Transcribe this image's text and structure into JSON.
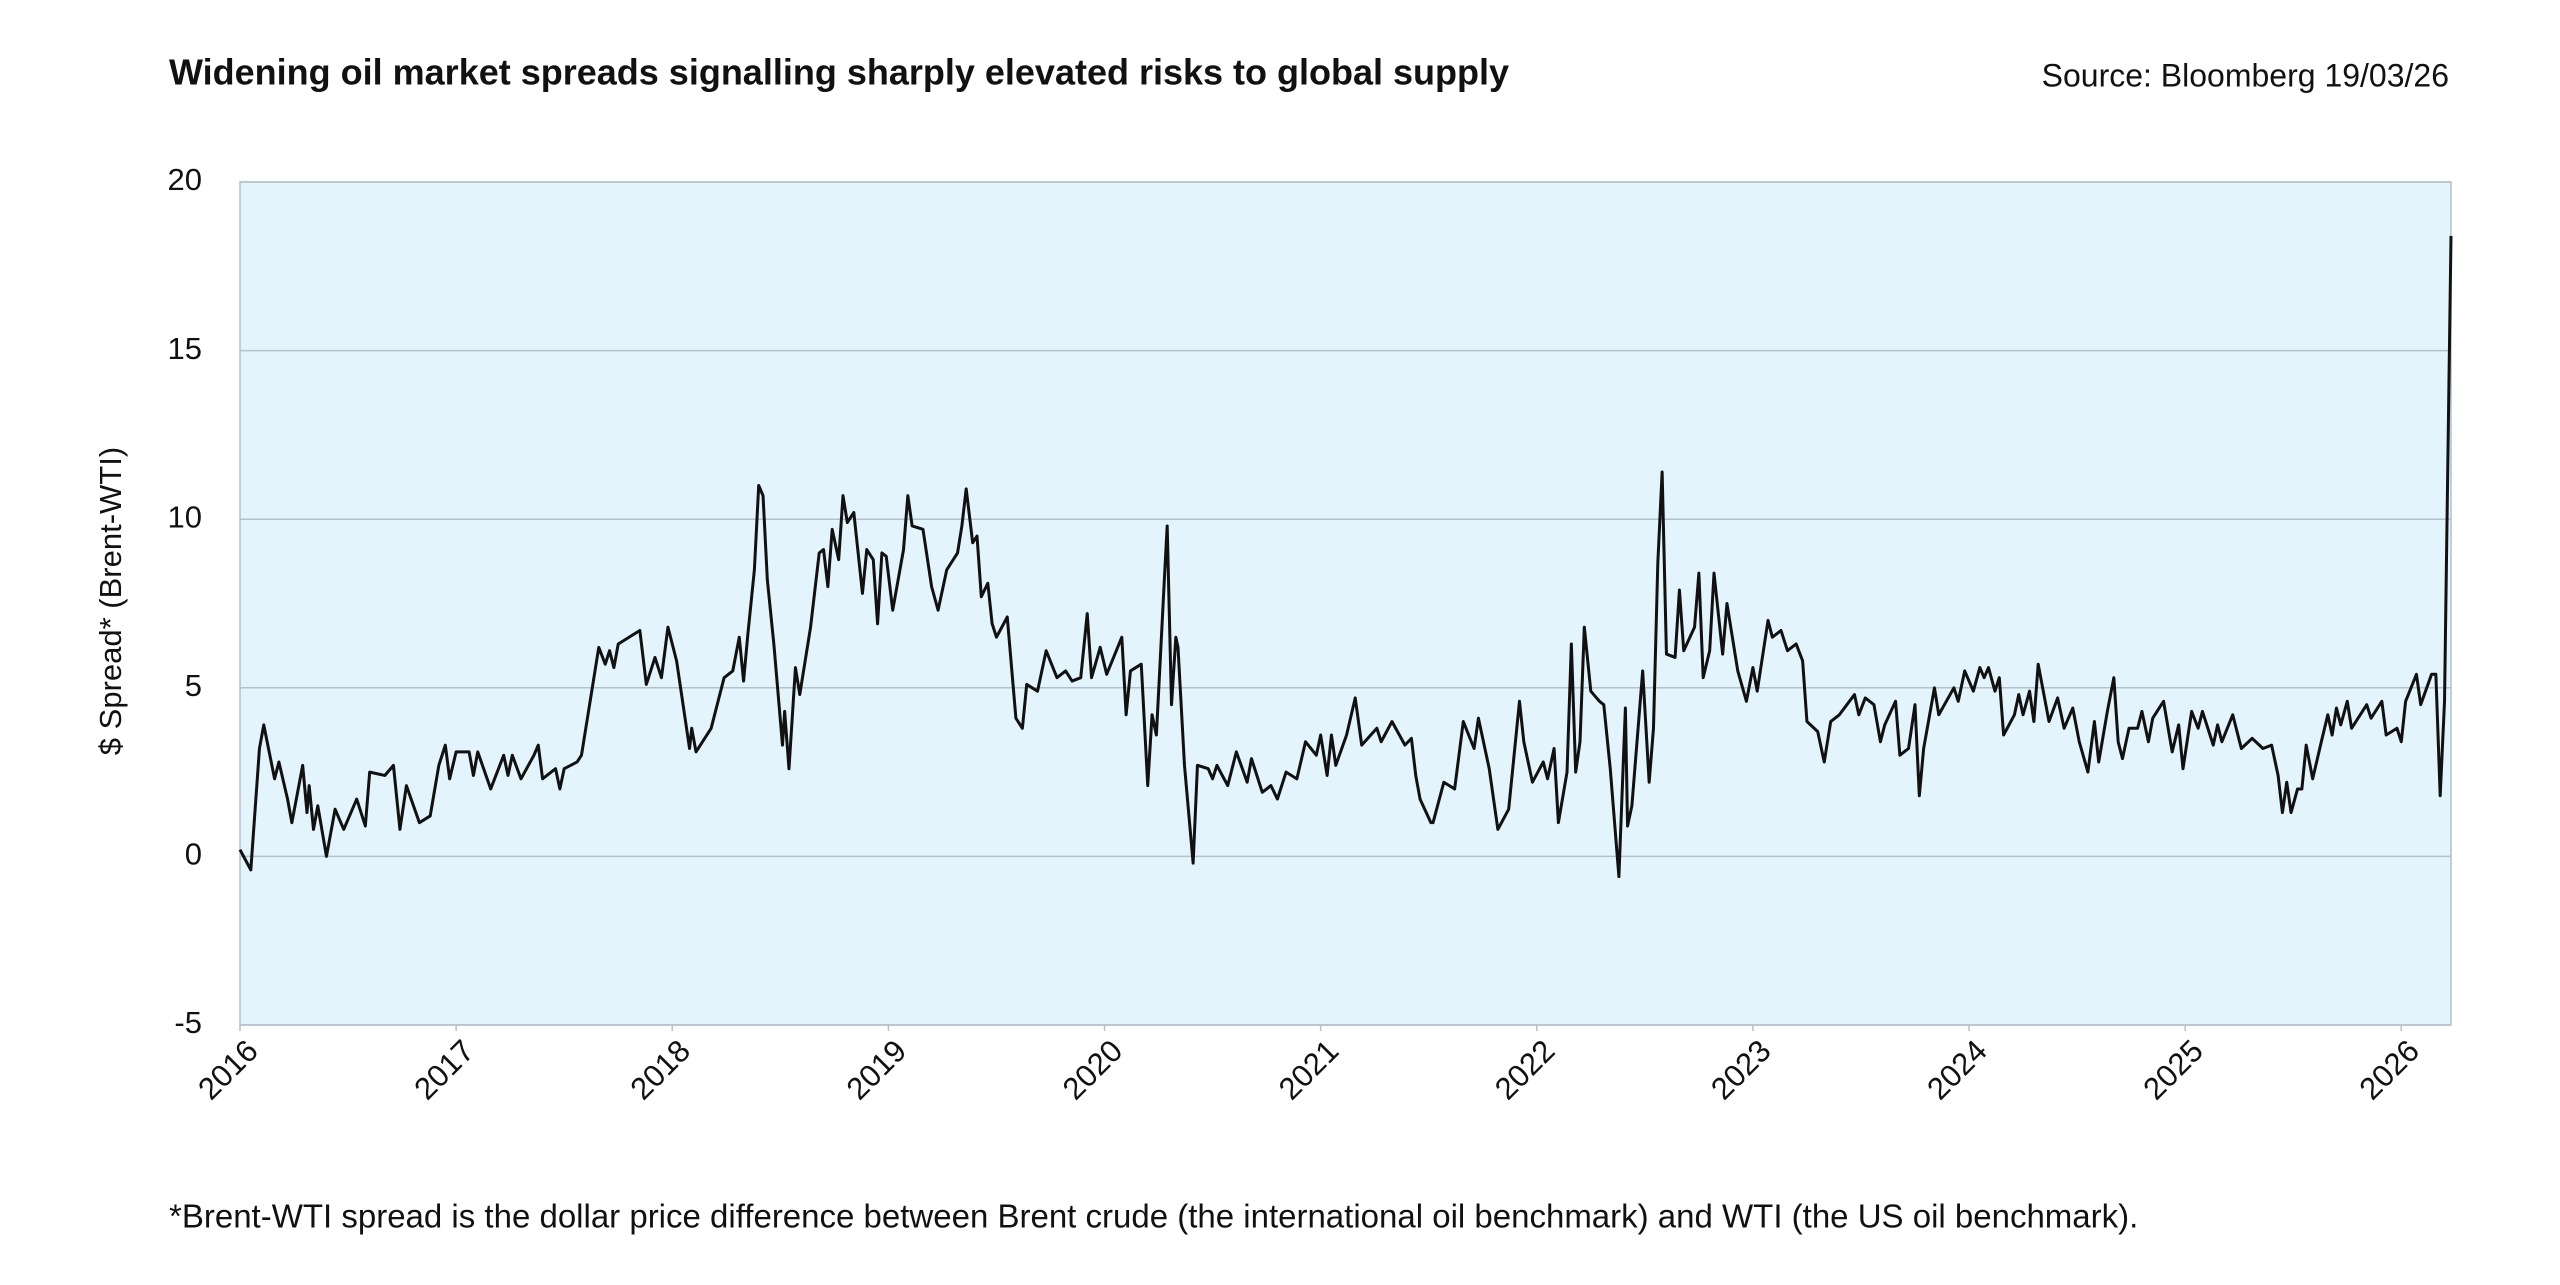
{
  "chart_data": {
    "type": "line",
    "title": "Widening oil market spreads signalling sharply elevated risks to global supply",
    "source": "Source: Bloomberg 19/03/26",
    "ylabel": "$ Spread* (Brent-WTI)",
    "footnote": "*Brent-WTI spread is the dollar price difference between Brent crude (the international oil benchmark) and WTI (the US oil benchmark).",
    "color": "#111111",
    "plot_background": "#e3f4fc",
    "grid": true,
    "xlim": [
      2016,
      2026.23
    ],
    "xticks": [
      2016,
      2017,
      2018,
      2019,
      2020,
      2021,
      2022,
      2023,
      2024,
      2025,
      2026
    ],
    "ylim": [
      -5,
      20
    ],
    "yticks": [
      -5,
      0,
      5,
      10,
      15,
      20
    ],
    "x": [
      2016.0,
      2016.05,
      2016.09,
      2016.11,
      2016.16,
      2016.18,
      2016.22,
      2016.24,
      2016.29,
      2016.31,
      2016.32,
      2016.34,
      2016.36,
      2016.4,
      2016.44,
      2016.48,
      2016.54,
      2016.58,
      2016.6,
      2016.67,
      2016.71,
      2016.74,
      2016.77,
      2016.83,
      2016.88,
      2016.92,
      2016.95,
      2016.97,
      2017.0,
      2017.06,
      2017.08,
      2017.1,
      2017.16,
      2017.22,
      2017.24,
      2017.26,
      2017.3,
      2017.36,
      2017.38,
      2017.4,
      2017.46,
      2017.48,
      2017.5,
      2017.56,
      2017.58,
      2017.61,
      2017.66,
      2017.69,
      2017.71,
      2017.73,
      2017.75,
      2017.8,
      2017.85,
      2017.88,
      2017.92,
      2017.95,
      2017.98,
      2018.02,
      2018.08,
      2018.09,
      2018.11,
      2018.18,
      2018.24,
      2018.28,
      2018.31,
      2018.33,
      2018.35,
      2018.38,
      2018.4,
      2018.42,
      2018.44,
      2018.47,
      2018.51,
      2018.52,
      2018.54,
      2018.57,
      2018.59,
      2018.64,
      2018.68,
      2018.7,
      2018.72,
      2018.74,
      2018.77,
      2018.79,
      2018.81,
      2018.84,
      2018.88,
      2018.9,
      2018.93,
      2018.95,
      2018.97,
      2018.99,
      2019.02,
      2019.07,
      2019.09,
      2019.11,
      2019.16,
      2019.2,
      2019.23,
      2019.27,
      2019.32,
      2019.34,
      2019.36,
      2019.39,
      2019.41,
      2019.43,
      2019.46,
      2019.48,
      2019.5,
      2019.55,
      2019.59,
      2019.62,
      2019.64,
      2019.69,
      2019.73,
      2019.78,
      2019.82,
      2019.85,
      2019.89,
      2019.92,
      2019.94,
      2019.98,
      2020.01,
      2020.08,
      2020.1,
      2020.12,
      2020.17,
      2020.2,
      2020.22,
      2020.24,
      2020.28,
      2020.29,
      2020.31,
      2020.33,
      2020.34,
      2020.37,
      2020.41,
      2020.43,
      2020.48,
      2020.5,
      2020.52,
      2020.57,
      2020.61,
      2020.66,
      2020.68,
      2020.73,
      2020.77,
      2020.8,
      2020.84,
      2020.89,
      2020.93,
      2020.98,
      2021.0,
      2021.03,
      2021.05,
      2021.07,
      2021.12,
      2021.16,
      2021.19,
      2021.26,
      2021.28,
      2021.33,
      2021.39,
      2021.42,
      2021.44,
      2021.46,
      2021.51,
      2021.52,
      2021.57,
      2021.62,
      2021.66,
      2021.71,
      2021.73,
      2021.78,
      2021.82,
      2021.87,
      2021.92,
      2021.94,
      2021.98,
      2022.03,
      2022.05,
      2022.08,
      2022.1,
      2022.14,
      2022.16,
      2022.18,
      2022.2,
      2022.22,
      2022.25,
      2022.29,
      2022.31,
      2022.34,
      2022.38,
      2022.41,
      2022.42,
      2022.44,
      2022.49,
      2022.52,
      2022.54,
      2022.56,
      2022.58,
      2022.6,
      2022.64,
      2022.66,
      2022.68,
      2022.73,
      2022.75,
      2022.77,
      2022.8,
      2022.82,
      2022.86,
      2022.88,
      2022.93,
      2022.97,
      2023.0,
      2023.02,
      2023.07,
      2023.09,
      2023.13,
      2023.16,
      2023.2,
      2023.23,
      2023.25,
      2023.3,
      2023.33,
      2023.36,
      2023.4,
      2023.47,
      2023.49,
      2023.52,
      2023.56,
      2023.59,
      2023.61,
      2023.66,
      2023.68,
      2023.72,
      2023.75,
      2023.77,
      2023.79,
      2023.84,
      2023.86,
      2023.93,
      2023.95,
      2023.98,
      2024.02,
      2024.05,
      2024.07,
      2024.09,
      2024.12,
      2024.14,
      2024.16,
      2024.21,
      2024.23,
      2024.25,
      2024.28,
      2024.3,
      2024.32,
      2024.37,
      2024.41,
      2024.44,
      2024.48,
      2024.51,
      2024.55,
      2024.58,
      2024.6,
      2024.64,
      2024.67,
      2024.69,
      2024.71,
      2024.74,
      2024.78,
      2024.8,
      2024.83,
      2024.85,
      2024.9,
      2024.94,
      2024.97,
      2024.99,
      2025.03,
      2025.06,
      2025.08,
      2025.13,
      2025.15,
      2025.17,
      2025.22,
      2025.26,
      2025.31,
      2025.36,
      2025.4,
      2025.43,
      2025.45,
      2025.47,
      2025.49,
      2025.52,
      2025.54,
      2025.56,
      2025.59,
      2025.63,
      2025.66,
      2025.68,
      2025.7,
      2025.72,
      2025.75,
      2025.77,
      2025.84,
      2025.86,
      2025.91,
      2025.93,
      2025.98,
      2026.0,
      2026.02,
      2026.07,
      2026.09,
      2026.14,
      2026.16,
      2026.18,
      2026.2,
      2026.23
    ],
    "values": [
      0.2,
      -0.4,
      3.2,
      3.9,
      2.3,
      2.8,
      1.7,
      1.0,
      2.7,
      1.3,
      2.1,
      0.8,
      1.5,
      0.0,
      1.4,
      0.8,
      1.7,
      0.9,
      2.5,
      2.4,
      2.7,
      0.8,
      2.1,
      1.0,
      1.2,
      2.7,
      3.3,
      2.3,
      3.1,
      3.1,
      2.4,
      3.1,
      2.0,
      3.0,
      2.4,
      3.0,
      2.3,
      3.0,
      3.3,
      2.3,
      2.6,
      2.0,
      2.6,
      2.8,
      3.0,
      4.2,
      6.2,
      5.7,
      6.1,
      5.6,
      6.3,
      6.5,
      6.7,
      5.1,
      5.9,
      5.3,
      6.8,
      5.8,
      3.2,
      3.8,
      3.1,
      3.8,
      5.3,
      5.5,
      6.5,
      5.2,
      6.6,
      8.5,
      11.0,
      10.7,
      8.2,
      6.3,
      3.3,
      4.3,
      2.6,
      5.6,
      4.8,
      6.8,
      9.0,
      9.1,
      8.0,
      9.7,
      8.8,
      10.7,
      9.9,
      10.2,
      7.8,
      9.1,
      8.8,
      6.9,
      9.0,
      8.9,
      7.3,
      9.1,
      10.7,
      9.8,
      9.7,
      8.0,
      7.3,
      8.5,
      9.0,
      9.8,
      10.9,
      9.3,
      9.5,
      7.7,
      8.1,
      6.9,
      6.5,
      7.1,
      4.1,
      3.8,
      5.1,
      4.9,
      6.1,
      5.3,
      5.5,
      5.2,
      5.3,
      7.2,
      5.3,
      6.2,
      5.4,
      6.5,
      4.2,
      5.5,
      5.7,
      2.1,
      4.2,
      3.6,
      8.6,
      9.8,
      4.5,
      6.5,
      6.2,
      2.7,
      -0.2,
      2.7,
      2.6,
      2.3,
      2.7,
      2.1,
      3.1,
      2.2,
      2.9,
      1.9,
      2.1,
      1.7,
      2.5,
      2.3,
      3.4,
      3.0,
      3.6,
      2.4,
      3.6,
      2.7,
      3.6,
      4.7,
      3.3,
      3.8,
      3.4,
      4.0,
      3.3,
      3.5,
      2.4,
      1.7,
      1.0,
      1.0,
      2.2,
      2.0,
      4.0,
      3.2,
      4.1,
      2.6,
      0.8,
      1.4,
      4.6,
      3.4,
      2.2,
      2.8,
      2.3,
      3.2,
      1.0,
      2.5,
      6.3,
      2.5,
      3.4,
      6.8,
      4.9,
      4.6,
      4.5,
      2.6,
      -0.6,
      4.4,
      0.9,
      1.5,
      5.5,
      2.2,
      3.8,
      8.7,
      11.4,
      6.0,
      5.9,
      7.9,
      6.1,
      6.8,
      8.4,
      5.3,
      6.1,
      8.4,
      6.0,
      7.5,
      5.5,
      4.6,
      5.6,
      4.9,
      7.0,
      6.5,
      6.7,
      6.1,
      6.3,
      5.8,
      4.0,
      3.7,
      2.8,
      4.0,
      4.2,
      4.8,
      4.2,
      4.7,
      4.5,
      3.4,
      3.9,
      4.6,
      3.0,
      3.2,
      4.5,
      1.8,
      3.2,
      5.0,
      4.2,
      5.0,
      4.6,
      5.5,
      4.9,
      5.6,
      5.3,
      5.6,
      4.9,
      5.3,
      3.6,
      4.2,
      4.8,
      4.2,
      4.9,
      4.0,
      5.7,
      4.0,
      4.7,
      3.8,
      4.4,
      3.4,
      2.5,
      4.0,
      2.8,
      4.3,
      5.3,
      3.4,
      2.9,
      3.8,
      3.8,
      4.3,
      3.4,
      4.1,
      4.6,
      3.1,
      3.9,
      2.6,
      4.3,
      3.8,
      4.3,
      3.3,
      3.9,
      3.4,
      4.2,
      3.2,
      3.5,
      3.2,
      3.3,
      2.4,
      1.3,
      2.2,
      1.3,
      2.0,
      2.0,
      3.3,
      2.3,
      3.4,
      4.2,
      3.6,
      4.4,
      3.9,
      4.6,
      3.8,
      4.5,
      4.1,
      4.6,
      3.6,
      3.8,
      3.4,
      4.6,
      5.4,
      4.5,
      5.4,
      5.4,
      1.8,
      4.6,
      18.4
    ]
  }
}
